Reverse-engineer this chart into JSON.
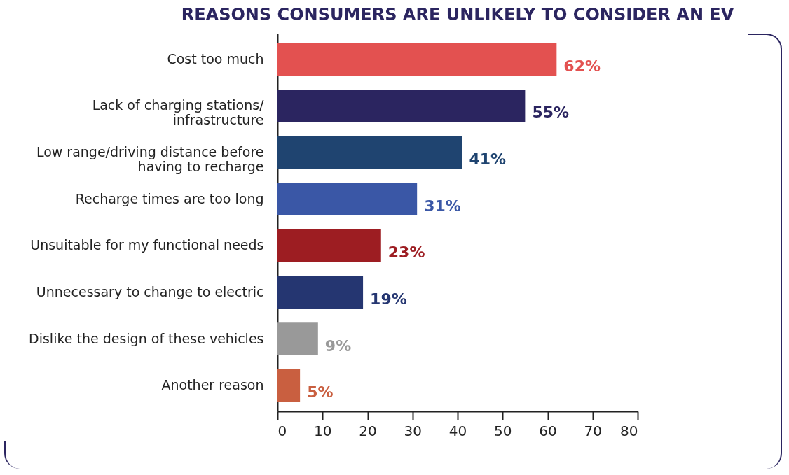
{
  "chart_data": {
    "type": "bar",
    "orientation": "horizontal",
    "title": "REASONS CONSUMERS ARE UNLIKELY TO CONSIDER AN EV",
    "categories": [
      "Cost too much",
      "Lack of charging stations/ infrastructure",
      "Low range/driving distance before having to recharge",
      "Recharge times are too long",
      "Unsuitable for my functional needs",
      "Unnecessary to change to electric",
      "Dislike the design of these vehicles",
      "Another reason"
    ],
    "values": [
      62,
      55,
      41,
      31,
      23,
      19,
      9,
      5
    ],
    "value_labels": [
      "62%",
      "55%",
      "41%",
      "31%",
      "23%",
      "19%",
      "9%",
      "5%"
    ],
    "colors": [
      "#e35150",
      "#2b2560",
      "#1f4470",
      "#3a57a6",
      "#9d1d22",
      "#253671",
      "#999999",
      "#c95f40"
    ],
    "xlim": [
      0,
      80
    ],
    "xticks": [
      0,
      10,
      20,
      30,
      40,
      50,
      60,
      70,
      80
    ],
    "grid": false,
    "legend": false
  }
}
